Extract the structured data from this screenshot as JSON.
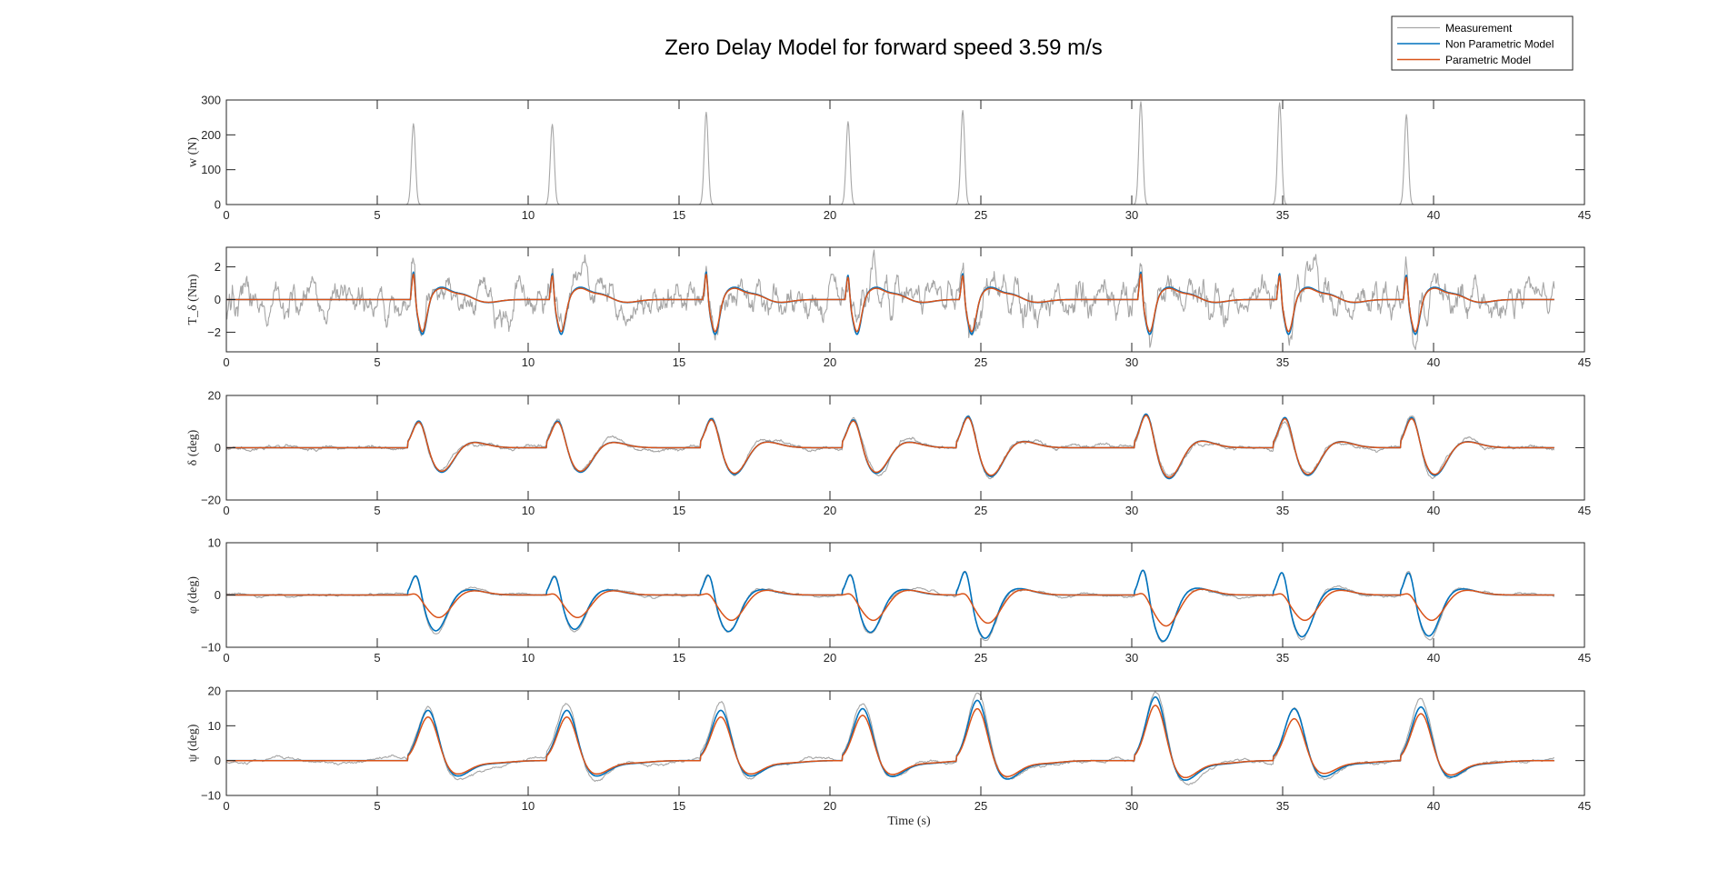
{
  "chart_data": {
    "type": "line",
    "title": "Zero Delay Model for forward speed 3.59 m/s",
    "xlabel": "Time (s)",
    "xlim": [
      0,
      45
    ],
    "xticks": [
      0,
      5,
      10,
      15,
      20,
      25,
      30,
      35,
      40,
      45
    ],
    "legend": {
      "placement": "top-right",
      "entries": [
        "Measurement",
        "Non Parametric Model",
        "Parametric Model"
      ]
    },
    "colors": {
      "Measurement": "#a6a6a6",
      "Non Parametric Model": "#0072bd",
      "Parametric Model": "#d95319"
    },
    "events": [
      {
        "t": 6.2,
        "w": 232,
        "Ts": 1.9,
        "delta": 11.5,
        "phi_np": 4.8,
        "phi_p": 0.8,
        "psi_np": 15.0,
        "psi_p": 13.0
      },
      {
        "t": 10.8,
        "w": 230,
        "Ts": 1.8,
        "delta": 11.5,
        "phi_np": 4.6,
        "phi_p": 0.8,
        "psi_np": 15.0,
        "psi_p": 13.0
      },
      {
        "t": 15.9,
        "w": 265,
        "Ts": 1.9,
        "delta": 12.5,
        "phi_np": 4.9,
        "phi_p": 0.9,
        "psi_np": 15.0,
        "psi_p": 13.0
      },
      {
        "t": 20.6,
        "w": 238,
        "Ts": 1.7,
        "delta": 12.0,
        "phi_np": 5.0,
        "phi_p": 0.9,
        "psi_np": 15.5,
        "psi_p": 13.5
      },
      {
        "t": 24.4,
        "w": 270,
        "Ts": 1.8,
        "delta": 13.5,
        "phi_np": 5.8,
        "phi_p": 1.0,
        "psi_np": 18.0,
        "psi_p": 15.5
      },
      {
        "t": 30.3,
        "w": 295,
        "Ts": 1.9,
        "delta": 14.5,
        "phi_np": 6.2,
        "phi_p": 1.1,
        "psi_np": 19.0,
        "psi_p": 16.5
      },
      {
        "t": 34.9,
        "w": 292,
        "Ts": 1.8,
        "delta": 13.0,
        "phi_np": 5.6,
        "phi_p": 0.9,
        "psi_np": 15.5,
        "psi_p": 12.5
      },
      {
        "t": 39.1,
        "w": 258,
        "Ts": 1.7,
        "delta": 13.0,
        "phi_np": 5.5,
        "phi_p": 0.9,
        "psi_np": 16.0,
        "psi_p": 14.0
      }
    ],
    "panels": [
      {
        "ylabel": "w (N)",
        "ylim": [
          0,
          300
        ],
        "yticks": [
          0,
          100,
          200,
          300
        ],
        "series": [
          "Measurement"
        ]
      },
      {
        "ylabel": "T_δ (Nm)",
        "ylim": [
          -3.2,
          3.2
        ],
        "yticks": [
          -2,
          0,
          2
        ],
        "series": [
          "Measurement",
          "Non Parametric Model",
          "Parametric Model"
        ]
      },
      {
        "ylabel": "δ (deg)",
        "ylim": [
          -20,
          20
        ],
        "yticks": [
          -20,
          0,
          20
        ],
        "series": [
          "Measurement",
          "Non Parametric Model",
          "Parametric Model"
        ]
      },
      {
        "ylabel": "φ (deg)",
        "ylim": [
          -10,
          10
        ],
        "yticks": [
          -10,
          0,
          10
        ],
        "series": [
          "Measurement",
          "Non Parametric Model",
          "Parametric Model"
        ]
      },
      {
        "ylabel": "ψ (deg)",
        "ylim": [
          -10,
          20
        ],
        "yticks": [
          -10,
          0,
          10,
          20
        ],
        "series": [
          "Measurement",
          "Non Parametric Model",
          "Parametric Model"
        ]
      }
    ]
  }
}
